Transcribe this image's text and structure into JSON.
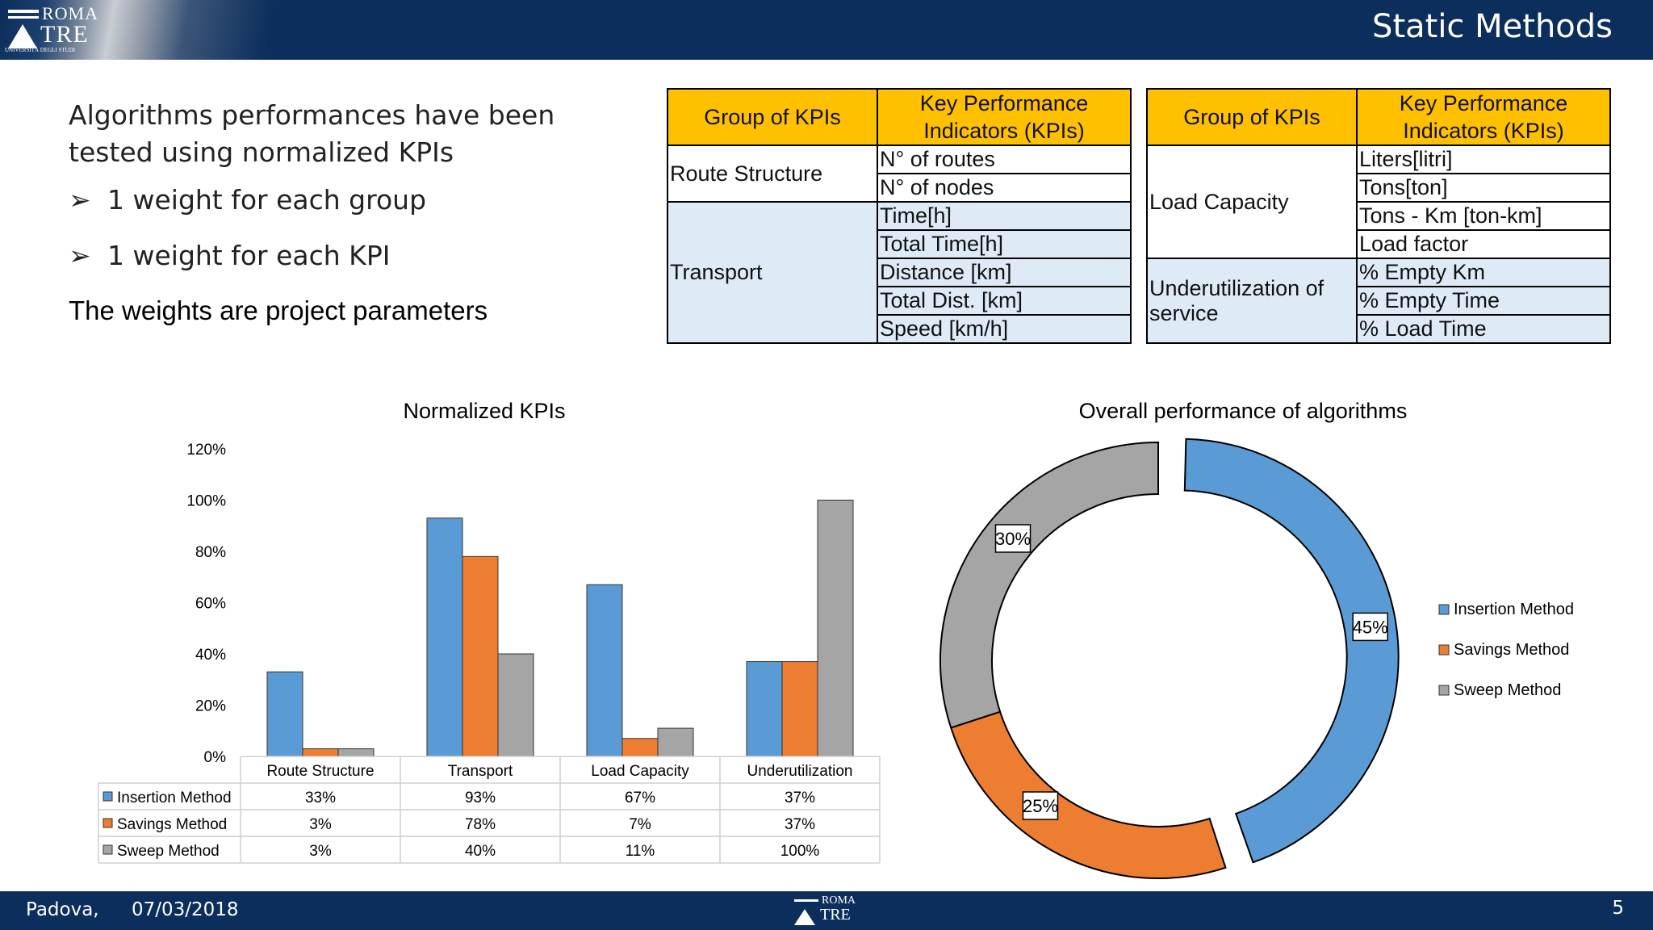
{
  "header": {
    "title": "Static Methods",
    "logo": {
      "line1": "ROMA",
      "line2": "TRE",
      "line3": "UNIVERSITÀ DEGLI STUDI"
    }
  },
  "left": {
    "intro": "Algorithms performances have been tested using normalized KPIs",
    "bullets": [
      "1 weight for each group",
      "1 weight for each KPI"
    ],
    "bullet_glyph": "➢",
    "params": "The weights are project parameters"
  },
  "table1": {
    "headers": [
      "Group of KPIs",
      "Key Performance Indicators (KPIs)"
    ],
    "groups": [
      {
        "name": "Route Structure",
        "kpis": [
          "N° of routes",
          "N° of nodes"
        ]
      },
      {
        "name": "Transport",
        "kpis": [
          "Time[h]",
          "Total Time[h]",
          "Distance [km]",
          "Total Dist. [km]",
          "Speed [km/h]"
        ]
      }
    ]
  },
  "table2": {
    "headers": [
      "Group of KPIs",
      "Key Performance Indicators (KPIs)"
    ],
    "groups": [
      {
        "name": "Load Capacity",
        "kpis": [
          "Liters[litri]",
          "Tons[ton]",
          "Tons - Km [ton-km]",
          "Load factor"
        ]
      },
      {
        "name": "Underutilization of service",
        "kpis": [
          "% Empty Km",
          "% Empty Time",
          "% Load Time"
        ]
      }
    ]
  },
  "colors": {
    "insertion": "#5b9bd5",
    "savings": "#ed7d31",
    "sweep": "#a5a5a5",
    "header_bg": "#0b2e5c",
    "table_head": "#ffc000",
    "table_blue": "#deebf7"
  },
  "chart_data": [
    {
      "type": "bar",
      "title": "Normalized KPIs",
      "categories": [
        "Route Structure",
        "Transport",
        "Load Capacity",
        "Underutilization"
      ],
      "series": [
        {
          "name": "Insertion Method",
          "values": [
            33,
            93,
            67,
            37
          ],
          "labels": [
            "33%",
            "93%",
            "67%",
            "37%"
          ]
        },
        {
          "name": "Savings Method",
          "values": [
            3,
            78,
            7,
            37
          ],
          "labels": [
            "3%",
            "78%",
            "7%",
            "37%"
          ]
        },
        {
          "name": "Sweep Method",
          "values": [
            3,
            40,
            11,
            100
          ],
          "labels": [
            "3%",
            "40%",
            "11%",
            "100%"
          ]
        }
      ],
      "yticks": [
        "0%",
        "20%",
        "40%",
        "60%",
        "80%",
        "100%",
        "120%"
      ],
      "ylim": [
        0,
        120
      ],
      "data_table": true
    },
    {
      "type": "pie",
      "title": "Overall performance of algorithms",
      "labels": [
        "Insertion Method",
        "Savings Method",
        "Sweep Method"
      ],
      "values": [
        45,
        25,
        30
      ],
      "value_labels": [
        "45%",
        "25%",
        "30%"
      ],
      "legend": "right",
      "style": "doughnut, Insertion slice exploded"
    }
  ],
  "footer": {
    "city": "Padova,",
    "date": "07/03/2018",
    "page": "5",
    "logo": {
      "line1": "ROMA",
      "line2": "TRE"
    }
  }
}
